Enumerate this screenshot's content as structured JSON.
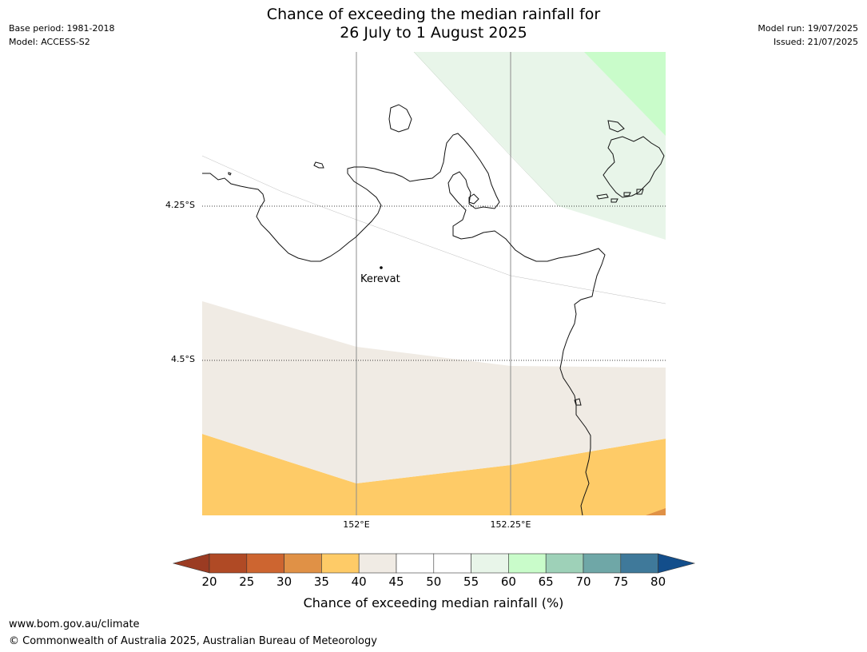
{
  "title": {
    "line1": "Chance of exceeding the median rainfall for",
    "line2": "26 July to 1 August 2025"
  },
  "meta_left": {
    "base_period": "Base period: 1981-2018",
    "model": "Model: ACCESS-S2"
  },
  "meta_right": {
    "model_run": "Model run: 19/07/2025",
    "issued": "Issued: 21/07/2025"
  },
  "map": {
    "latitudes": [
      "4.25°S",
      "4.5°S"
    ],
    "longitudes": [
      "152°E",
      "152.25°E"
    ],
    "place": "Kerevat",
    "zones": [
      {
        "band": "35-40",
        "color": "#fecb67"
      },
      {
        "band": "40-45",
        "color": "#f0ebe4"
      },
      {
        "band": "45-55",
        "color": "#ffffff"
      },
      {
        "band": "55-60",
        "color": "#e8f5e9"
      },
      {
        "band": "60-65",
        "color": "#c9fcca"
      },
      {
        "band": "30-35",
        "color": "#e09146"
      }
    ]
  },
  "colorbar": {
    "ticks": [
      "20",
      "25",
      "30",
      "35",
      "40",
      "45",
      "50",
      "55",
      "60",
      "65",
      "70",
      "75",
      "80"
    ],
    "under_color": "#9b3b22",
    "colors": [
      "#b04a25",
      "#cd6530",
      "#e09146",
      "#fecb67",
      "#f0ebe4",
      "#ffffff",
      "#ffffff",
      "#e8f5e9",
      "#c9fcca",
      "#9ed1b8",
      "#6fa7a7",
      "#3f799a"
    ],
    "over_color": "#134e8b",
    "label": "Chance of exceeding median rainfall (%)"
  },
  "footer": {
    "url": "www.bom.gov.au/climate",
    "copyright": "© Commonwealth of Australia 2025, Australian Bureau of Meteorology"
  }
}
